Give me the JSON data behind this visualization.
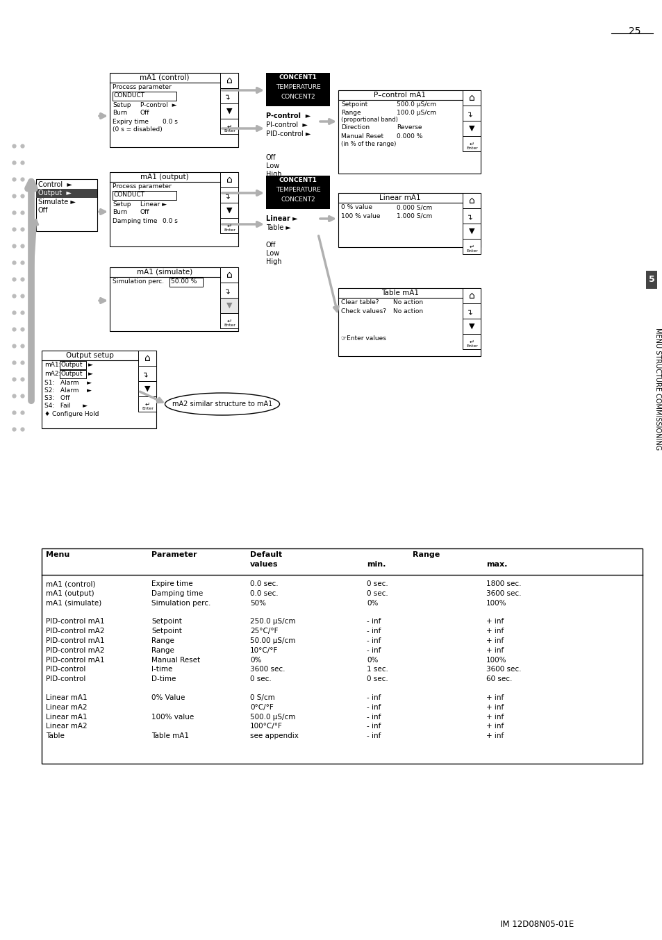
{
  "page_number": "25",
  "footer": "IM 12D08N05-01E",
  "side_label": "MENU STRUCTURE COMMISSIONING",
  "section_number": "5",
  "table_data": [
    [
      "mA1 (control)",
      "Expire time",
      "0.0 sec.",
      "0 sec.",
      "1800 sec."
    ],
    [
      "mA1 (output)",
      "Damping time",
      "0.0 sec.",
      "0 sec.",
      "3600 sec."
    ],
    [
      "mA1 (simulate)",
      "Simulation perc.",
      "50%",
      "0%",
      "100%"
    ],
    [
      "",
      "",
      "",
      "",
      ""
    ],
    [
      "PID-control mA1",
      "Setpoint",
      "250.0 μS/cm",
      "- inf",
      "+ inf"
    ],
    [
      "PID-control mA2",
      "Setpoint",
      "25°C/°F",
      "- inf",
      "+ inf"
    ],
    [
      "PID-control mA1",
      "Range",
      "50.00 μS/cm",
      "- inf",
      "+ inf"
    ],
    [
      "PID-control mA2",
      "Range",
      "10°C/°F",
      "- inf",
      "+ inf"
    ],
    [
      "PID-control mA1",
      "Manual Reset",
      "0%",
      "0%",
      "100%"
    ],
    [
      "PID-control",
      "I-time",
      "3600 sec.",
      "1 sec.",
      "3600 sec."
    ],
    [
      "PID-control",
      "D-time",
      "0 sec.",
      "0 sec.",
      "60 sec."
    ],
    [
      "",
      "",
      "",
      "",
      ""
    ],
    [
      "Linear mA1",
      "0% Value",
      "0 S/cm",
      "- inf",
      "+ inf"
    ],
    [
      "Linear mA2",
      "",
      "0°C/°F",
      "- inf",
      "+ inf"
    ],
    [
      "Linear mA1",
      "100% value",
      "500.0 μS/cm",
      "- inf",
      "+ inf"
    ],
    [
      "Linear mA2",
      "",
      "100°C/°F",
      "- inf",
      "+ inf"
    ],
    [
      "Table",
      "Table mA1",
      "see appendix",
      "- inf",
      "+ inf"
    ]
  ],
  "bg_color": "#ffffff",
  "gc": "#b0b0b0"
}
